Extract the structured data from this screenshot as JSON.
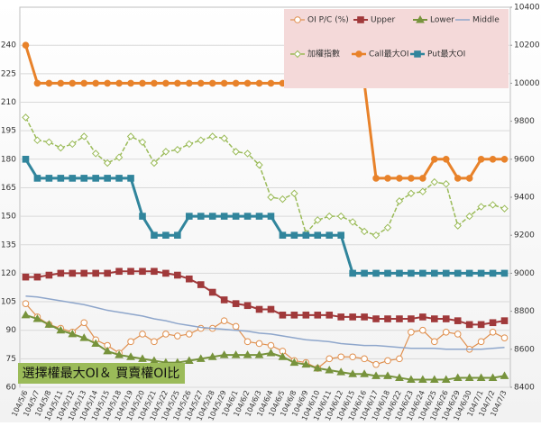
{
  "chart_data": {
    "type": "line",
    "annotation": "選擇權最大OI＆ 買賣權OI比",
    "categories": [
      "104/5/6",
      "104/5/7",
      "104/5/8",
      "104/5/11",
      "104/5/12",
      "104/5/13",
      "104/5/14",
      "104/5/15",
      "104/5/18",
      "104/5/19",
      "104/5/20",
      "104/5/21",
      "104/5/22",
      "104/5/25",
      "104/5/26",
      "104/5/27",
      "104/5/28",
      "104/5/29",
      "104/6/1",
      "104/6/2",
      "104/6/3",
      "104/6/4",
      "104/6/5",
      "104/6/8",
      "104/6/9",
      "104/6/10",
      "104/6/11",
      "104/6/12",
      "104/6/15",
      "104/6/16",
      "104/6/17",
      "104/6/18",
      "104/6/22",
      "104/6/23",
      "104/6/24",
      "104/6/25",
      "104/6/26",
      "104/6/29",
      "104/6/30",
      "104/7/1",
      "104/7/2",
      "104/7/3"
    ],
    "ylim": [
      60,
      260
    ],
    "yticks": [
      60,
      75,
      90,
      105,
      120,
      135,
      150,
      165,
      180,
      195,
      210,
      225,
      240
    ],
    "y2lim": [
      8400,
      10400
    ],
    "y2ticks": [
      8400,
      8600,
      8800,
      9000,
      9200,
      9400,
      9600,
      9800,
      10000,
      10200,
      10400
    ],
    "grid": true,
    "series": [
      {
        "name": "OI P/C (%)",
        "color": "#e0904f",
        "marker": "circle-open",
        "width": 1.2,
        "values": [
          104,
          97,
          93,
          91,
          89,
          94,
          85,
          82,
          78,
          84,
          88,
          84,
          88,
          87,
          88,
          91,
          91,
          95,
          92,
          84,
          83,
          82,
          79,
          74,
          73,
          70,
          75,
          76,
          76,
          75,
          72,
          74,
          75,
          89,
          90,
          84,
          89,
          88,
          80,
          84,
          89,
          86
        ]
      },
      {
        "name": "Upper",
        "color": "#a0393a",
        "marker": "square",
        "width": 2,
        "values": [
          118,
          118,
          119,
          120,
          120,
          120,
          120,
          120,
          121,
          121,
          121,
          121,
          120,
          119,
          117,
          114,
          110,
          106,
          104,
          103,
          101,
          101,
          98,
          98,
          98,
          98,
          98,
          97,
          97,
          97,
          96,
          96,
          96,
          96,
          97,
          96,
          96,
          95,
          93,
          93,
          94,
          95
        ]
      },
      {
        "name": "Lower",
        "color": "#77933c",
        "marker": "triangle",
        "width": 2,
        "values": [
          98,
          96,
          93,
          90,
          88,
          86,
          83,
          79,
          77,
          76,
          75,
          74,
          73,
          73,
          74,
          75,
          76,
          77,
          77,
          77,
          77,
          78,
          76,
          73,
          72,
          70,
          69,
          68,
          67,
          67,
          66,
          66,
          65,
          64,
          64,
          64,
          64,
          65,
          65,
          65,
          65,
          66
        ]
      },
      {
        "name": "Middle",
        "color": "#8ea6cb",
        "marker": "none",
        "width": 1.5,
        "values": [
          108,
          107.5,
          106.5,
          105.5,
          104.5,
          103.5,
          102,
          100.5,
          99.5,
          98.5,
          97.5,
          96,
          95,
          93.5,
          92.5,
          91.5,
          91,
          90.5,
          90,
          89.5,
          88.5,
          88,
          87,
          86,
          85,
          84.5,
          84,
          83,
          82.5,
          82,
          82,
          81.5,
          81,
          80.5,
          80.5,
          80.5,
          80,
          80,
          80,
          80,
          80.5,
          81
        ]
      },
      {
        "name": "加權指數",
        "color": "#9bbb59",
        "marker": "diamond-open",
        "width": 1.5,
        "dash": true,
        "axis": "y2",
        "values": [
          9820,
          9700,
          9690,
          9660,
          9680,
          9720,
          9630,
          9580,
          9610,
          9720,
          9690,
          9580,
          9640,
          9650,
          9680,
          9700,
          9720,
          9710,
          9640,
          9630,
          9570,
          9400,
          9390,
          9420,
          9210,
          9280,
          9300,
          9300,
          9270,
          9220,
          9200,
          9240,
          9380,
          9420,
          9430,
          9480,
          9470,
          9250,
          9300,
          9350,
          9360,
          9340
        ]
      },
      {
        "name": "Call最大OI",
        "color": "#e8822a",
        "marker": "circle",
        "width": 3,
        "values": [
          240,
          220,
          220,
          220,
          220,
          220,
          220,
          220,
          220,
          220,
          220,
          220,
          220,
          220,
          220,
          220,
          220,
          220,
          220,
          220,
          220,
          220,
          220,
          220,
          220,
          220,
          220,
          220,
          220,
          220,
          170,
          170,
          170,
          170,
          170,
          180,
          180,
          170,
          170,
          180,
          180,
          180
        ]
      },
      {
        "name": "Put最大OI",
        "color": "#31859c",
        "marker": "square",
        "width": 3,
        "values": [
          180,
          170,
          170,
          170,
          170,
          170,
          170,
          170,
          170,
          170,
          150,
          140,
          140,
          140,
          150,
          150,
          150,
          150,
          150,
          150,
          150,
          150,
          140,
          140,
          140,
          140,
          140,
          140,
          120,
          120,
          120,
          120,
          120,
          120,
          120,
          120,
          120,
          120,
          120,
          120,
          120,
          120
        ]
      }
    ]
  }
}
